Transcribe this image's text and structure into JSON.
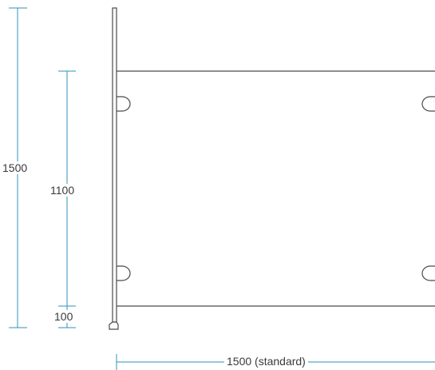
{
  "dimensions": {
    "total_height": "1500",
    "panel_height": "1100",
    "bottom_offset": "100",
    "panel_width": "1500 (standard)"
  },
  "colors": {
    "dimension_line": "#2e93b8",
    "outline": "#4a4a4a",
    "text": "#3a3a3a"
  }
}
